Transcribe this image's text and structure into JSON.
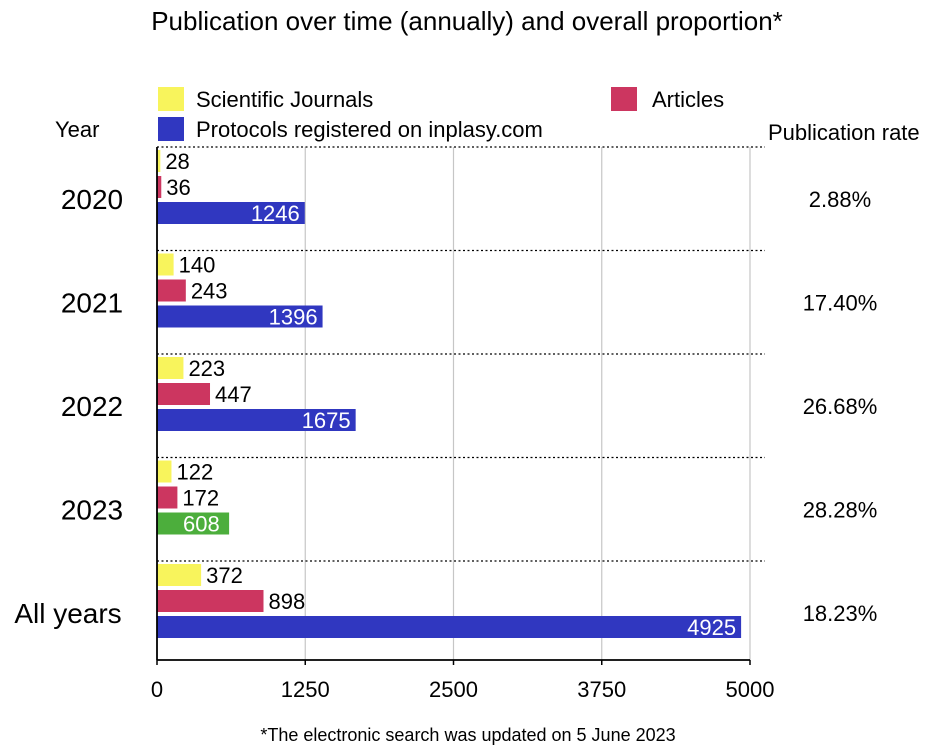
{
  "chart_data": {
    "type": "bar",
    "orientation": "horizontal",
    "title": "Publication over time (annually) and overall proportion*",
    "footnote": "*The electronic search was updated on 5 June 2023",
    "row_header": "Year",
    "rate_header": "Publication rate",
    "categories": [
      "2020",
      "2021",
      "2022",
      "2023",
      "All years"
    ],
    "series": [
      {
        "name": "Scientific Journals",
        "color": "#f8f45c",
        "values": [
          28,
          140,
          223,
          122,
          372
        ]
      },
      {
        "name": "Articles",
        "color": "#cc3660",
        "values": [
          36,
          243,
          447,
          172,
          898
        ]
      },
      {
        "name": "Protocols registered on inplasy.com",
        "color": "#3037c0",
        "values": [
          1246,
          1396,
          1675,
          608,
          4925
        ]
      }
    ],
    "highlight": {
      "series_index": 2,
      "category_index": 3,
      "color": "#4cae3c"
    },
    "publication_rates": [
      "2.88%",
      "17.40%",
      "26.68%",
      "28.28%",
      "18.23%"
    ],
    "xlim": [
      0,
      5000
    ],
    "xticks": [
      "0",
      "1250",
      "2500",
      "3750",
      "5000"
    ],
    "grid": true,
    "legend_position": "top"
  }
}
